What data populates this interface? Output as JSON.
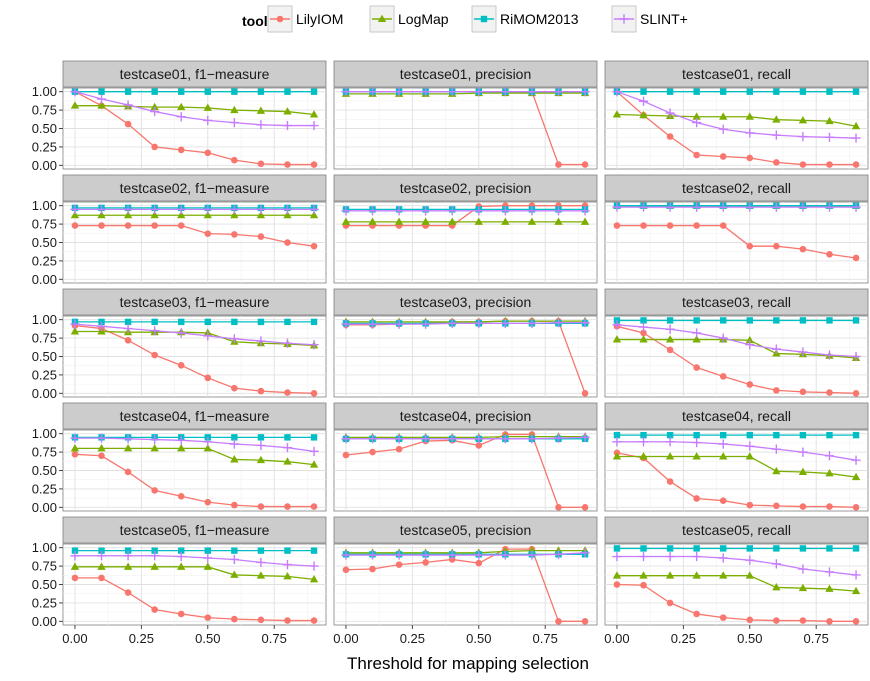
{
  "chart_data": {
    "type": "line",
    "legend": {
      "title": "tool",
      "placement": "top",
      "entries": [
        {
          "name": "LilyIOM",
          "color": "#F8766D",
          "shape": "circle"
        },
        {
          "name": "LogMap",
          "color": "#7CAE00",
          "shape": "triangle"
        },
        {
          "name": "RiMOM2013",
          "color": "#00BFC4",
          "shape": "square"
        },
        {
          "name": "SLINT+",
          "color": "#C77CFF",
          "shape": "plus"
        }
      ]
    },
    "xlabel": "Threshold for mapping selection",
    "ylabel": "",
    "x": [
      0.0,
      0.1,
      0.2,
      0.3,
      0.4,
      0.5,
      0.6,
      0.7,
      0.8,
      0.9
    ],
    "xlim": [
      -0.045,
      0.945
    ],
    "ylim": [
      -0.05,
      1.05
    ],
    "xticks": [
      "0.00",
      "0.25",
      "0.50",
      "0.75"
    ],
    "xtick_values": [
      0,
      0.25,
      0.5,
      0.75
    ],
    "yticks": [
      "0.00",
      "0.25",
      "0.50",
      "0.75",
      "1.00"
    ],
    "ytick_values": [
      0,
      0.25,
      0.5,
      0.75,
      1.0
    ],
    "grid": true,
    "columns": [
      "f1−measure",
      "precision",
      "recall"
    ],
    "rows": [
      "testcase01",
      "testcase02",
      "testcase03",
      "testcase04",
      "testcase05"
    ],
    "panels": [
      {
        "title": "testcase01, f1−measure",
        "series": {
          "LilyIOM": [
            1.0,
            0.81,
            0.56,
            0.25,
            0.21,
            0.17,
            0.07,
            0.02,
            0.01,
            0.01
          ],
          "LogMap": [
            0.81,
            0.81,
            0.8,
            0.79,
            0.79,
            0.78,
            0.75,
            0.74,
            0.73,
            0.69
          ],
          "RiMOM2013": [
            1.0,
            1.0,
            1.0,
            1.0,
            1.0,
            1.0,
            1.0,
            1.0,
            1.0,
            1.0
          ],
          "SLINT+": [
            1.0,
            0.9,
            0.82,
            0.73,
            0.66,
            0.61,
            0.58,
            0.55,
            0.54,
            0.54
          ]
        }
      },
      {
        "title": "testcase01, precision",
        "series": {
          "LilyIOM": [
            1.0,
            1.0,
            1.0,
            1.0,
            1.0,
            1.0,
            1.0,
            1.0,
            0.01,
            0.01
          ],
          "LogMap": [
            0.97,
            0.97,
            0.97,
            0.97,
            0.97,
            0.98,
            0.98,
            0.98,
            0.98,
            0.98
          ],
          "RiMOM2013": [
            1.0,
            1.0,
            1.0,
            1.0,
            1.0,
            1.0,
            1.0,
            1.0,
            1.0,
            1.0
          ],
          "SLINT+": [
            1.0,
            1.0,
            1.0,
            1.0,
            1.0,
            1.0,
            1.0,
            1.0,
            1.0,
            1.0
          ]
        }
      },
      {
        "title": "testcase01, recall",
        "series": {
          "LilyIOM": [
            1.0,
            0.68,
            0.39,
            0.14,
            0.12,
            0.1,
            0.04,
            0.01,
            0.01,
            0.01
          ],
          "LogMap": [
            0.69,
            0.68,
            0.67,
            0.66,
            0.66,
            0.66,
            0.62,
            0.61,
            0.6,
            0.53
          ],
          "RiMOM2013": [
            1.0,
            1.0,
            1.0,
            1.0,
            1.0,
            1.0,
            1.0,
            1.0,
            1.0,
            1.0
          ],
          "SLINT+": [
            1.0,
            0.87,
            0.71,
            0.58,
            0.49,
            0.44,
            0.41,
            0.39,
            0.38,
            0.37
          ]
        }
      },
      {
        "title": "testcase02, f1−measure",
        "series": {
          "LilyIOM": [
            0.73,
            0.73,
            0.73,
            0.73,
            0.73,
            0.62,
            0.61,
            0.58,
            0.5,
            0.45
          ],
          "LogMap": [
            0.87,
            0.87,
            0.87,
            0.87,
            0.87,
            0.87,
            0.87,
            0.87,
            0.87,
            0.87
          ],
          "RiMOM2013": [
            0.97,
            0.97,
            0.97,
            0.97,
            0.97,
            0.97,
            0.97,
            0.97,
            0.97,
            0.97
          ],
          "SLINT+": [
            0.95,
            0.95,
            0.95,
            0.95,
            0.95,
            0.95,
            0.95,
            0.95,
            0.95,
            0.95
          ]
        }
      },
      {
        "title": "testcase02, precision",
        "series": {
          "LilyIOM": [
            0.73,
            0.73,
            0.73,
            0.73,
            0.73,
            0.99,
            1.0,
            1.0,
            1.0,
            1.0
          ],
          "LogMap": [
            0.78,
            0.78,
            0.78,
            0.78,
            0.78,
            0.78,
            0.78,
            0.78,
            0.78,
            0.78
          ],
          "RiMOM2013": [
            0.95,
            0.95,
            0.95,
            0.95,
            0.95,
            0.95,
            0.95,
            0.95,
            0.95,
            0.95
          ],
          "SLINT+": [
            0.93,
            0.93,
            0.93,
            0.93,
            0.93,
            0.93,
            0.93,
            0.93,
            0.93,
            0.93
          ]
        }
      },
      {
        "title": "testcase02, recall",
        "series": {
          "LilyIOM": [
            0.73,
            0.73,
            0.73,
            0.73,
            0.73,
            0.45,
            0.45,
            0.41,
            0.34,
            0.29
          ],
          "LogMap": [
            1.0,
            1.0,
            1.0,
            1.0,
            1.0,
            1.0,
            1.0,
            1.0,
            1.0,
            1.0
          ],
          "RiMOM2013": [
            1.0,
            1.0,
            1.0,
            1.0,
            1.0,
            1.0,
            1.0,
            1.0,
            1.0,
            1.0
          ],
          "SLINT+": [
            0.98,
            0.98,
            0.98,
            0.98,
            0.98,
            0.98,
            0.98,
            0.98,
            0.98,
            0.98
          ]
        }
      },
      {
        "title": "testcase03, f1−measure",
        "series": {
          "LilyIOM": [
            0.92,
            0.88,
            0.72,
            0.52,
            0.38,
            0.21,
            0.07,
            0.03,
            0.01,
            0.0
          ],
          "LogMap": [
            0.84,
            0.84,
            0.83,
            0.83,
            0.83,
            0.82,
            0.7,
            0.68,
            0.67,
            0.65
          ],
          "RiMOM2013": [
            0.97,
            0.97,
            0.97,
            0.97,
            0.97,
            0.97,
            0.97,
            0.97,
            0.97,
            0.97
          ],
          "SLINT+": [
            0.94,
            0.91,
            0.88,
            0.85,
            0.82,
            0.78,
            0.74,
            0.71,
            0.68,
            0.66
          ]
        }
      },
      {
        "title": "testcase03, precision",
        "series": {
          "LilyIOM": [
            0.93,
            0.93,
            0.94,
            0.95,
            0.97,
            0.97,
            0.98,
            0.98,
            0.98,
            0.0
          ],
          "LogMap": [
            0.97,
            0.97,
            0.97,
            0.97,
            0.97,
            0.97,
            0.98,
            0.98,
            0.98,
            0.98
          ],
          "RiMOM2013": [
            0.95,
            0.95,
            0.95,
            0.95,
            0.95,
            0.95,
            0.95,
            0.95,
            0.95,
            0.95
          ],
          "SLINT+": [
            0.94,
            0.94,
            0.94,
            0.94,
            0.95,
            0.95,
            0.95,
            0.95,
            0.96,
            0.96
          ]
        }
      },
      {
        "title": "testcase03, recall",
        "series": {
          "LilyIOM": [
            0.91,
            0.82,
            0.59,
            0.35,
            0.23,
            0.12,
            0.04,
            0.02,
            0.01,
            0.0
          ],
          "LogMap": [
            0.73,
            0.73,
            0.73,
            0.73,
            0.73,
            0.72,
            0.54,
            0.53,
            0.51,
            0.48
          ],
          "RiMOM2013": [
            0.99,
            0.99,
            0.99,
            0.99,
            0.99,
            0.99,
            0.99,
            0.99,
            0.99,
            0.99
          ],
          "SLINT+": [
            0.93,
            0.9,
            0.87,
            0.82,
            0.75,
            0.66,
            0.6,
            0.56,
            0.52,
            0.5
          ]
        }
      },
      {
        "title": "testcase04, f1−measure",
        "series": {
          "LilyIOM": [
            0.72,
            0.7,
            0.48,
            0.23,
            0.15,
            0.07,
            0.03,
            0.01,
            0.01,
            0.01
          ],
          "LogMap": [
            0.8,
            0.8,
            0.8,
            0.8,
            0.8,
            0.8,
            0.65,
            0.64,
            0.62,
            0.58
          ],
          "RiMOM2013": [
            0.95,
            0.95,
            0.95,
            0.95,
            0.95,
            0.95,
            0.95,
            0.95,
            0.95,
            0.95
          ],
          "SLINT+": [
            0.94,
            0.94,
            0.93,
            0.92,
            0.91,
            0.89,
            0.86,
            0.84,
            0.81,
            0.76
          ]
        }
      },
      {
        "title": "testcase04, precision",
        "series": {
          "LilyIOM": [
            0.71,
            0.75,
            0.79,
            0.9,
            0.91,
            0.84,
            0.99,
            0.99,
            0.0,
            0.0
          ],
          "LogMap": [
            0.95,
            0.95,
            0.95,
            0.95,
            0.95,
            0.95,
            0.96,
            0.96,
            0.96,
            0.96
          ],
          "RiMOM2013": [
            0.93,
            0.93,
            0.93,
            0.93,
            0.93,
            0.93,
            0.93,
            0.93,
            0.93,
            0.93
          ],
          "SLINT+": [
            0.93,
            0.93,
            0.93,
            0.93,
            0.93,
            0.93,
            0.93,
            0.93,
            0.94,
            0.95
          ]
        }
      },
      {
        "title": "testcase04, recall",
        "series": {
          "LilyIOM": [
            0.74,
            0.67,
            0.35,
            0.12,
            0.09,
            0.03,
            0.02,
            0.01,
            0.01,
            0.0
          ],
          "LogMap": [
            0.69,
            0.69,
            0.69,
            0.69,
            0.69,
            0.69,
            0.49,
            0.48,
            0.46,
            0.41
          ],
          "RiMOM2013": [
            0.98,
            0.98,
            0.98,
            0.98,
            0.98,
            0.98,
            0.98,
            0.98,
            0.98,
            0.98
          ],
          "SLINT+": [
            0.89,
            0.89,
            0.89,
            0.88,
            0.86,
            0.83,
            0.79,
            0.75,
            0.7,
            0.64
          ]
        }
      },
      {
        "title": "testcase05, f1−measure",
        "series": {
          "LilyIOM": [
            0.59,
            0.59,
            0.39,
            0.16,
            0.1,
            0.05,
            0.03,
            0.02,
            0.01,
            0.01
          ],
          "LogMap": [
            0.74,
            0.74,
            0.74,
            0.74,
            0.74,
            0.74,
            0.63,
            0.62,
            0.61,
            0.57
          ],
          "RiMOM2013": [
            0.96,
            0.96,
            0.96,
            0.96,
            0.96,
            0.96,
            0.96,
            0.96,
            0.96,
            0.96
          ],
          "SLINT+": [
            0.89,
            0.89,
            0.89,
            0.89,
            0.88,
            0.86,
            0.84,
            0.8,
            0.77,
            0.75
          ]
        }
      },
      {
        "title": "testcase05, precision",
        "series": {
          "LilyIOM": [
            0.7,
            0.71,
            0.77,
            0.8,
            0.84,
            0.79,
            0.98,
            0.98,
            0.0,
            0.0
          ],
          "LogMap": [
            0.93,
            0.93,
            0.93,
            0.93,
            0.93,
            0.93,
            0.95,
            0.96,
            0.96,
            0.96
          ],
          "RiMOM2013": [
            0.91,
            0.91,
            0.91,
            0.91,
            0.91,
            0.91,
            0.91,
            0.91,
            0.91,
            0.91
          ],
          "SLINT+": [
            0.9,
            0.9,
            0.9,
            0.9,
            0.9,
            0.9,
            0.9,
            0.9,
            0.91,
            0.93
          ]
        }
      },
      {
        "title": "testcase05, recall",
        "series": {
          "LilyIOM": [
            0.5,
            0.49,
            0.25,
            0.1,
            0.05,
            0.02,
            0.01,
            0.01,
            0.0,
            0.0
          ],
          "LogMap": [
            0.62,
            0.62,
            0.62,
            0.62,
            0.62,
            0.62,
            0.46,
            0.45,
            0.44,
            0.41
          ],
          "RiMOM2013": [
            0.99,
            0.99,
            0.99,
            0.99,
            0.99,
            0.99,
            0.99,
            0.99,
            0.99,
            0.99
          ],
          "SLINT+": [
            0.88,
            0.88,
            0.88,
            0.88,
            0.86,
            0.83,
            0.78,
            0.71,
            0.67,
            0.63
          ]
        }
      }
    ]
  }
}
